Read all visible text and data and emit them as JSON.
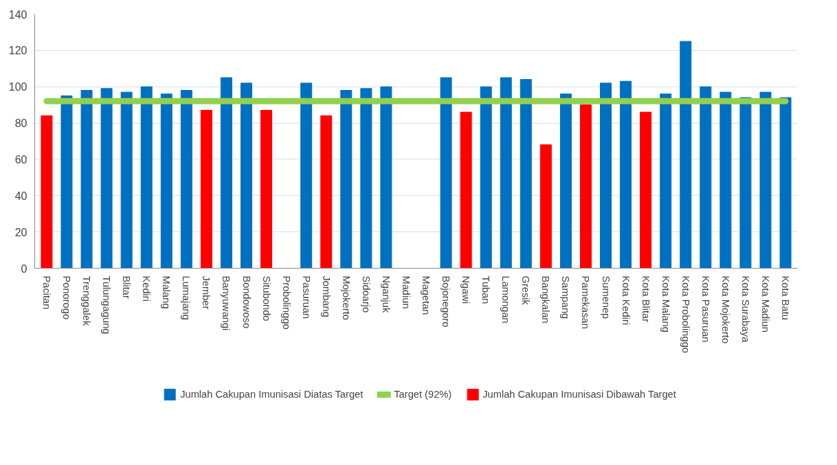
{
  "chart_data": {
    "type": "bar",
    "categories": [
      "Pacitan",
      "Ponorogo",
      "Trenggalek",
      "Tulungagung",
      "Blitar",
      "Kediri",
      "Malang",
      "Lumajang",
      "Jember",
      "Banyuwangi",
      "Bondowoso",
      "Situbondo",
      "Probolinggo",
      "Pasuruan",
      "Jombang",
      "Mojokerto",
      "Sidoarjo",
      "Nganjuk",
      "Madiun",
      "Magetan",
      "Bojonegoro",
      "Ngawi",
      "Tuban",
      "Lamongan",
      "Gresik",
      "Bangkalan",
      "Sampang",
      "Pamekasan",
      "Sumenep",
      "Kota Kediri",
      "Kota Blitar",
      "Kota Malang",
      "Kota Probolinggo",
      "Kota Pasuruan",
      "Kota Mojokerto",
      "Kota Surabaya",
      "Kota Madiun",
      "Kota Batu"
    ],
    "series": [
      {
        "name": "Jumlah Cakupan Imunisasi Diatas Target",
        "color": "#0070c0",
        "values": [
          null,
          95,
          98,
          99,
          97,
          100,
          96,
          98,
          null,
          105,
          102,
          null,
          null,
          102,
          null,
          98,
          99,
          100,
          null,
          null,
          105,
          null,
          100,
          105,
          104,
          null,
          96,
          null,
          102,
          103,
          null,
          96,
          125,
          100,
          97,
          94,
          97,
          94
        ]
      },
      {
        "name": "Target (92%)",
        "type": "line",
        "color": "#92d050",
        "values": [
          92,
          92,
          92,
          92,
          92,
          92,
          92,
          92,
          92,
          92,
          92,
          92,
          92,
          92,
          92,
          92,
          92,
          92,
          92,
          92,
          92,
          92,
          92,
          92,
          92,
          92,
          92,
          92,
          92,
          92,
          92,
          92,
          92,
          92,
          92,
          92,
          92,
          92
        ]
      },
      {
        "name": "Jumlah Cakupan Imunisasi Dibawah Target",
        "color": "#ff0000",
        "values": [
          84,
          null,
          null,
          null,
          null,
          null,
          null,
          null,
          87,
          null,
          null,
          87,
          null,
          null,
          84,
          null,
          null,
          null,
          null,
          null,
          null,
          86,
          null,
          null,
          null,
          68,
          null,
          90,
          null,
          null,
          86,
          null,
          null,
          null,
          null,
          null,
          null,
          null
        ]
      }
    ],
    "ylim": [
      0,
      140
    ],
    "yticks": [
      0,
      20,
      40,
      60,
      80,
      100,
      120,
      140
    ],
    "grid": "y",
    "legend": "bottom"
  }
}
